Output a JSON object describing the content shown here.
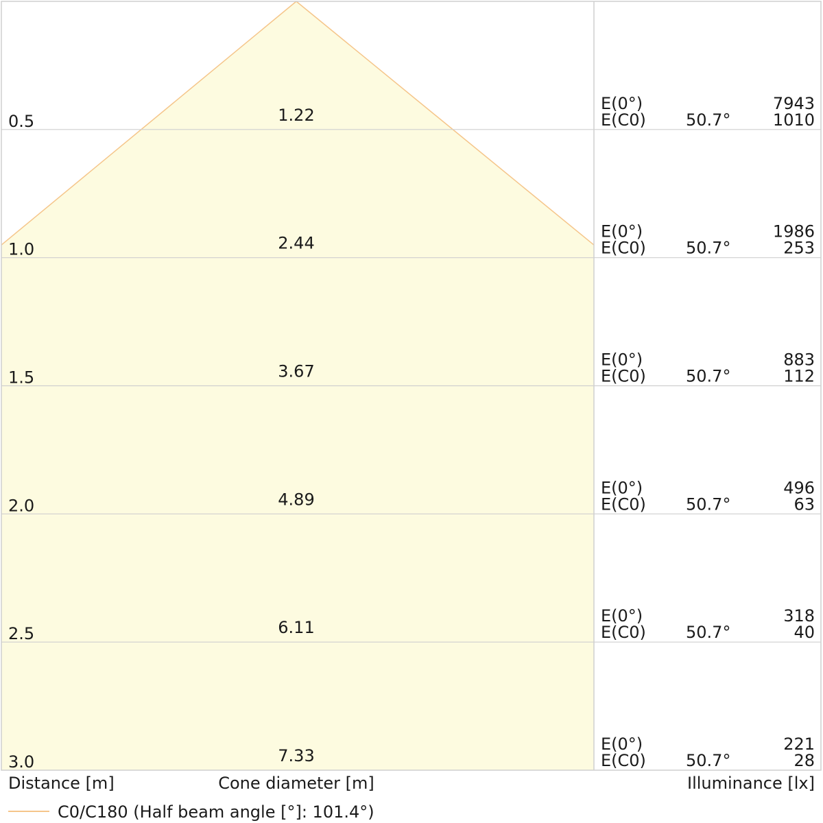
{
  "chart_data": {
    "type": "cone-diagram",
    "half_beam_angle_deg": 101.4,
    "x_axis_label": "Distance [m]",
    "cone_label": "Cone diameter [m]",
    "illuminance_label": "Illuminance [lx]",
    "legend": "C0/C180 (Half beam angle [°]: 101.4°)",
    "e0_label": "E(0°)",
    "ec0_label": "E(C0)",
    "rows": [
      {
        "distance": "0.5",
        "diameter": "1.22",
        "angle": "50.7°",
        "e0": "7943",
        "ec0": "1010"
      },
      {
        "distance": "1.0",
        "diameter": "2.44",
        "angle": "50.7°",
        "e0": "1986",
        "ec0": "253"
      },
      {
        "distance": "1.5",
        "diameter": "3.67",
        "angle": "50.7°",
        "e0": "883",
        "ec0": "112"
      },
      {
        "distance": "2.0",
        "diameter": "4.89",
        "angle": "50.7°",
        "e0": "496",
        "ec0": "63"
      },
      {
        "distance": "2.5",
        "diameter": "6.11",
        "angle": "50.7°",
        "e0": "318",
        "ec0": "40"
      },
      {
        "distance": "3.0",
        "diameter": "7.33",
        "angle": "50.7°",
        "e0": "221",
        "ec0": "28"
      }
    ],
    "colors": {
      "cone_fill": "#fdfbe0",
      "cone_edge": "#f5c58a",
      "grid": "#cfcfcf",
      "text": "#1a1a1a"
    }
  }
}
